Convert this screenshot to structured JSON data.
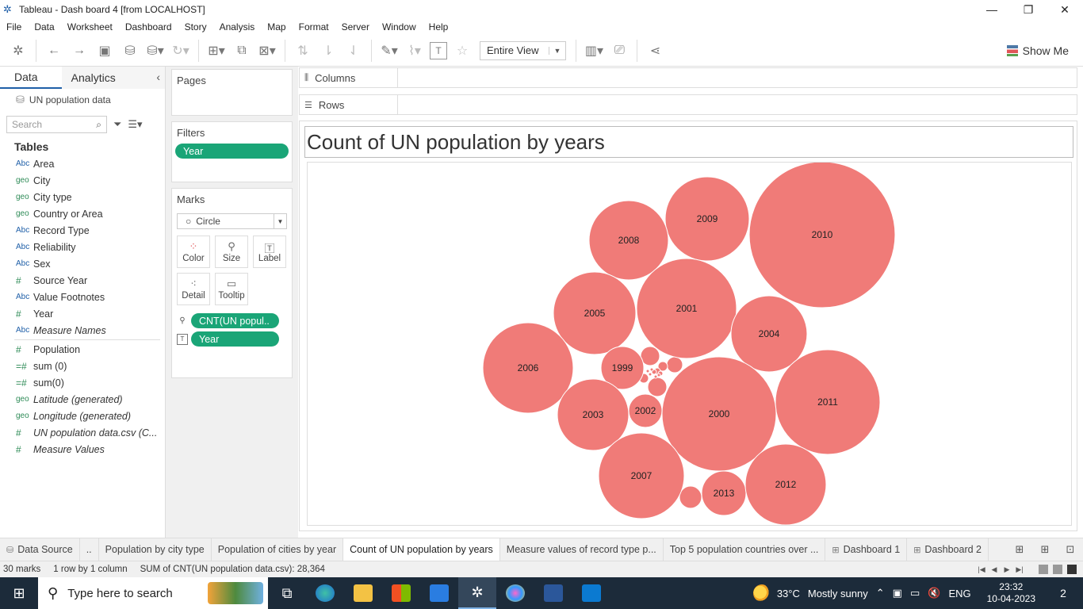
{
  "window": {
    "title": "Tableau - Dash board 4 [from LOCALHOST]"
  },
  "menu": [
    "File",
    "Data",
    "Worksheet",
    "Dashboard",
    "Story",
    "Analysis",
    "Map",
    "Format",
    "Server",
    "Window",
    "Help"
  ],
  "toolbar": {
    "view_mode": "Entire View",
    "show_me": "Show Me"
  },
  "data_pane": {
    "tab_data": "Data",
    "tab_analytics": "Analytics",
    "datasource": "UN population data",
    "search_placeholder": "Search",
    "tables_heading": "Tables",
    "dimensions": [
      {
        "type": "Abc",
        "name": "Area"
      },
      {
        "type": "geo",
        "name": "City"
      },
      {
        "type": "geo",
        "name": "City type"
      },
      {
        "type": "geo",
        "name": "Country or Area"
      },
      {
        "type": "Abc",
        "name": "Record Type"
      },
      {
        "type": "Abc",
        "name": "Reliability"
      },
      {
        "type": "Abc",
        "name": "Sex"
      },
      {
        "type": "#",
        "name": "Source Year"
      },
      {
        "type": "Abc",
        "name": "Value Footnotes"
      },
      {
        "type": "#",
        "name": "Year"
      },
      {
        "type": "Abc",
        "name": "Measure Names",
        "italic": true
      }
    ],
    "measures": [
      {
        "type": "#",
        "name": "Population"
      },
      {
        "type": "=#",
        "name": "sum (0)"
      },
      {
        "type": "=#",
        "name": "sum(0)"
      },
      {
        "type": "geo",
        "name": "Latitude (generated)",
        "italic": true
      },
      {
        "type": "geo",
        "name": "Longitude (generated)",
        "italic": true
      },
      {
        "type": "#",
        "name": "UN population data.csv (C...",
        "italic": true
      },
      {
        "type": "#",
        "name": "Measure Values",
        "italic": true
      }
    ]
  },
  "pages": {
    "heading": "Pages"
  },
  "filters": {
    "heading": "Filters",
    "pill": "Year"
  },
  "marks": {
    "heading": "Marks",
    "type": "Circle",
    "buttons": {
      "color": "Color",
      "size": "Size",
      "label": "Label",
      "detail": "Detail",
      "tooltip": "Tooltip"
    },
    "pill_size": "CNT(UN popul..",
    "pill_label": "Year"
  },
  "shelves": {
    "columns": "Columns",
    "rows": "Rows"
  },
  "viz": {
    "title": "Count of UN population by years",
    "bubble_color": "#f07b78"
  },
  "chart_data": {
    "type": "bubble",
    "title": "Count of UN population by years",
    "measure": "CNT(UN population data.csv)",
    "labels": [
      "2010",
      "2009",
      "2008",
      "2001",
      "2005",
      "2004",
      "2011",
      "2006",
      "1999",
      "2000",
      "2003",
      "2002",
      "2007",
      "2013",
      "2012"
    ]
  },
  "sheet_tabs": [
    {
      "label": "Data Source",
      "icon": "database-icon"
    },
    {
      "label": ".."
    },
    {
      "label": "Population by city type"
    },
    {
      "label": "Population of cities by year"
    },
    {
      "label": "Count of UN population by years",
      "active": true
    },
    {
      "label": "Measure values of record type p..."
    },
    {
      "label": "Top 5 population countries over ..."
    },
    {
      "label": "Dashboard 1",
      "icon": "dashboard-icon"
    },
    {
      "label": "Dashboard 2",
      "icon": "dashboard-icon"
    }
  ],
  "status": {
    "marks": "30 marks",
    "dims": "1 row by 1 column",
    "sum": "SUM of CNT(UN population data.csv): 28,364"
  },
  "taskbar": {
    "search_placeholder": "Type here to search",
    "temperature": "33°C",
    "weather": "Mostly sunny",
    "language": "ENG",
    "time": "23:32",
    "date": "10-04-2023",
    "notifications": "2"
  }
}
